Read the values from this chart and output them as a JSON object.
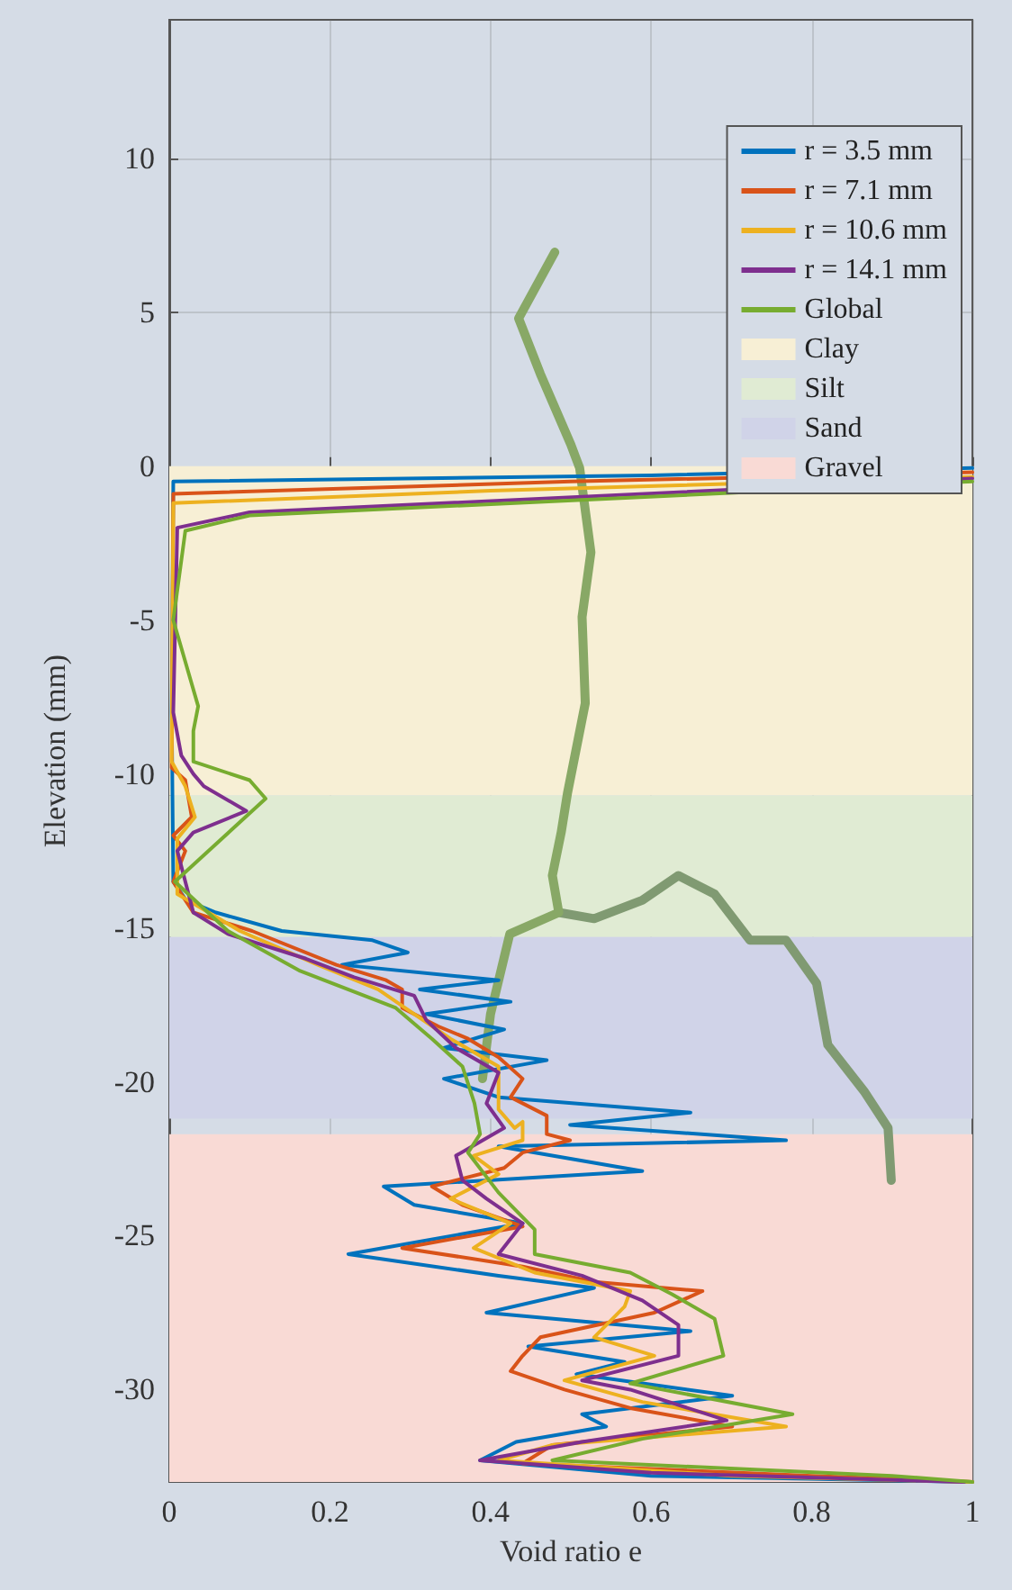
{
  "chart_data": {
    "type": "line",
    "xlabel": "Void ratio e",
    "ylabel": "Elevation (mm)",
    "xlim": [
      0,
      1
    ],
    "xticks": [
      0,
      0.2,
      0.4,
      0.6,
      0.8,
      1
    ],
    "ylim": [
      -33,
      14.5
    ],
    "yticks": [
      -30,
      -25,
      -20,
      -15,
      -10,
      -5,
      0,
      5,
      10
    ],
    "grid": true,
    "legend": "top right",
    "marker": "none",
    "line_style": "solid",
    "bands": [
      {
        "axis": "y",
        "from": 0,
        "to": -10.7,
        "label": "Clay",
        "color": "#f7efd5"
      },
      {
        "axis": "y",
        "from": -10.7,
        "to": -15.3,
        "label": "Silt",
        "color": "#e0ebd3"
      },
      {
        "axis": "y",
        "from": -15.3,
        "to": -21.2,
        "label": "Sand",
        "color": "#d0d3e8"
      },
      {
        "axis": "y",
        "from": -21.7,
        "to": -33,
        "label": "Gravel",
        "color": "#f9dad5"
      }
    ],
    "series": [
      {
        "name": "r = 3.5 mm",
        "color": "#0072bd",
        "x": [
          1,
          0.6,
          0.005,
          0.003,
          0.005,
          0.021,
          0.058,
          0.14,
          0.253,
          0.297,
          0.215,
          0.41,
          0.312,
          0.425,
          0.32,
          0.417,
          0.342,
          0.47,
          0.342,
          0.41,
          0.649,
          0.499,
          0.768,
          0.41,
          0.589,
          0.267,
          0.305,
          0.44,
          0.223,
          0.41,
          0.529,
          0.395,
          0.649,
          0.447,
          0.567,
          0.507,
          0.701,
          0.514,
          0.544,
          0.432,
          0.387,
          0.6,
          1
        ],
        "values": [
          -0.06,
          -0.3,
          -0.5,
          -8,
          -13.5,
          -14.1,
          -14.5,
          -15.1,
          -15.4,
          -15.8,
          -16.2,
          -16.7,
          -17,
          -17.4,
          -17.8,
          -18.3,
          -18.9,
          -19.3,
          -19.9,
          -20.5,
          -21,
          -21.4,
          -21.9,
          -22.1,
          -22.9,
          -23.4,
          -24,
          -24.6,
          -25.6,
          -26.3,
          -26.7,
          -27.5,
          -28.1,
          -28.6,
          -29.1,
          -29.5,
          -30.2,
          -30.8,
          -31.2,
          -31.7,
          -32.3,
          -32.8,
          -33
        ]
      },
      {
        "name": "r = 7.1 mm",
        "color": "#d95319",
        "x": [
          1,
          0.5,
          0.005,
          0.003,
          0.02,
          0.028,
          0.005,
          0.02,
          0.005,
          0.03,
          0.103,
          0.208,
          0.27,
          0.29,
          0.29,
          0.335,
          0.372,
          0.41,
          0.44,
          0.425,
          0.47,
          0.47,
          0.499,
          0.44,
          0.417,
          0.327,
          0.365,
          0.44,
          0.29,
          0.44,
          0.529,
          0.664,
          0.604,
          0.462,
          0.44,
          0.425,
          0.492,
          0.574,
          0.701,
          0.477,
          0.44,
          0.8,
          1
        ],
        "values": [
          -0.2,
          -0.5,
          -0.9,
          -9.8,
          -10.2,
          -11.4,
          -12,
          -12.5,
          -13.5,
          -14.5,
          -15.1,
          -16.2,
          -16.7,
          -17,
          -17.6,
          -18.2,
          -18.6,
          -19.2,
          -19.9,
          -20.5,
          -21.1,
          -21.7,
          -21.9,
          -22.3,
          -22.8,
          -23.4,
          -24,
          -24.7,
          -25.4,
          -26,
          -26.5,
          -26.8,
          -27.5,
          -28.3,
          -28.9,
          -29.4,
          -30,
          -30.6,
          -31.2,
          -31.8,
          -32.4,
          -32.8,
          -33
        ]
      },
      {
        "name": "r = 10.6 mm",
        "color": "#edb120",
        "x": [
          1,
          0.4,
          0.005,
          0.003,
          0.02,
          0.032,
          0.01,
          0.01,
          0.088,
          0.185,
          0.26,
          0.305,
          0.35,
          0.41,
          0.41,
          0.41,
          0.43,
          0.44,
          0.44,
          0.379,
          0.41,
          0.35,
          0.425,
          0.379,
          0.455,
          0.574,
          0.567,
          0.529,
          0.604,
          0.492,
          0.589,
          0.768,
          0.477,
          0.41,
          0.7,
          1
        ],
        "values": [
          -0.35,
          -0.8,
          -1.2,
          -9.6,
          -10.4,
          -11.4,
          -12.1,
          -13.9,
          -15.1,
          -16.2,
          -17,
          -17.8,
          -18.6,
          -19.5,
          -20.1,
          -20.9,
          -21.5,
          -21.3,
          -21.9,
          -22.4,
          -23,
          -23.8,
          -24.6,
          -25.4,
          -26.2,
          -26.8,
          -27.3,
          -28.3,
          -28.9,
          -29.7,
          -30.4,
          -31.2,
          -31.8,
          -32.3,
          -32.8,
          -33
        ]
      },
      {
        "name": "r = 14.1 mm",
        "color": "#7e2f8e",
        "x": [
          1,
          0.1,
          0.01,
          0.005,
          0.015,
          0.03,
          0.043,
          0.096,
          0.03,
          0.01,
          0.03,
          0.073,
          0.17,
          0.23,
          0.305,
          0.32,
          0.357,
          0.41,
          0.395,
          0.417,
          0.357,
          0.365,
          0.395,
          0.44,
          0.41,
          0.514,
          0.589,
          0.634,
          0.634,
          0.514,
          0.574,
          0.694,
          0.514,
          0.387,
          0.6,
          0.99
        ],
        "values": [
          -0.4,
          -1.5,
          -2,
          -8,
          -9.4,
          -10,
          -10.4,
          -11.2,
          -11.9,
          -12.5,
          -14.5,
          -15.2,
          -16,
          -16.6,
          -17.2,
          -18,
          -18.9,
          -19.7,
          -20.7,
          -21.5,
          -22.4,
          -23.2,
          -23.8,
          -24.6,
          -25.6,
          -26.3,
          -27.1,
          -27.9,
          -28.9,
          -29.7,
          -30,
          -31,
          -31.7,
          -32.3,
          -32.7,
          -33
        ]
      },
      {
        "name": "Global",
        "color": "#77ac30",
        "x": [
          1,
          0.1,
          0.02,
          0.005,
          0.036,
          0.03,
          0.03,
          0.1,
          0.12,
          0.007,
          0.073,
          0.163,
          0.282,
          0.327,
          0.365,
          0.38,
          0.387,
          0.372,
          0.41,
          0.455,
          0.455,
          0.574,
          0.626,
          0.679,
          0.69,
          0.574,
          0.776,
          0.589,
          0.477,
          0.9,
          1
        ],
        "values": [
          -0.5,
          -1.6,
          -2.1,
          -5,
          -7.8,
          -8.6,
          -9.6,
          -10.2,
          -10.8,
          -13.5,
          -15.1,
          -16.4,
          -17.6,
          -18.6,
          -19.5,
          -20.7,
          -21.7,
          -22.3,
          -23.6,
          -24.8,
          -25.6,
          -26.2,
          -26.9,
          -27.7,
          -28.9,
          -29.8,
          -30.8,
          -31.6,
          -32.3,
          -32.8,
          -33
        ]
      },
      {
        "color": "#88a866",
        "x": [
          0.48,
          0.435,
          0.462,
          0.5,
          0.511,
          0.525,
          0.514,
          0.518,
          0.496,
          0.488,
          0.477,
          0.485,
          0.424,
          0.4,
          0.39
        ],
        "values": [
          6.95,
          4.8,
          3,
          0.7,
          -0.06,
          -2.8,
          -4.9,
          -7.7,
          -10.6,
          -11.9,
          -13.3,
          -14.5,
          -15.2,
          -17.8,
          -19.9
        ]
      },
      {
        "color": "#809a72",
        "x": [
          0.485,
          0.529,
          0.589,
          0.634,
          0.679,
          0.723,
          0.768,
          0.806,
          0.82,
          0.865,
          0.895,
          0.899
        ],
        "values": [
          -14.5,
          -14.7,
          -14.1,
          -13.3,
          -13.9,
          -15.4,
          -15.4,
          -16.8,
          -18.8,
          -20.3,
          -21.5,
          -23.2
        ]
      }
    ]
  }
}
